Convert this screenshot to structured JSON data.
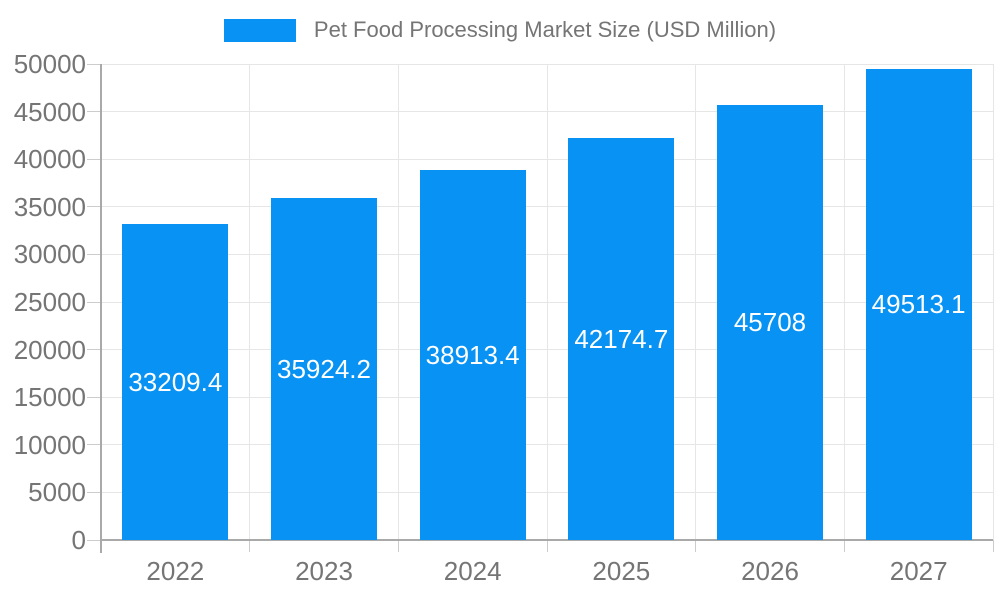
{
  "chart_data": {
    "type": "bar",
    "title": "Pet Food Processing Market Size (USD Million)",
    "categories": [
      "2022",
      "2023",
      "2024",
      "2025",
      "2026",
      "2027"
    ],
    "values": [
      33209.4,
      35924.2,
      38913.4,
      42174.7,
      45708,
      49513.1
    ],
    "bar_labels": [
      "33209.4",
      "35924.2",
      "38913.4",
      "42174.7",
      "45708",
      "49513.1"
    ],
    "series": [
      {
        "name": "Pet Food Processing Market Size (USD Million)",
        "values": [
          33209.4,
          35924.2,
          38913.4,
          42174.7,
          45708,
          49513.1
        ]
      }
    ],
    "xlabel": "",
    "ylabel": "",
    "ylim": [
      0,
      50000
    ],
    "yticks": [
      0,
      5000,
      10000,
      15000,
      20000,
      25000,
      30000,
      35000,
      40000,
      45000,
      50000
    ],
    "ytick_labels": [
      "0",
      "5000",
      "10000",
      "15000",
      "20000",
      "25000",
      "30000",
      "35000",
      "40000",
      "45000",
      "50000"
    ],
    "grid": true,
    "legend": {
      "position": "top",
      "label": "Pet Food Processing Market Size (USD Million)"
    },
    "colors": {
      "bar": "#0892f4",
      "bar_label_text": "#ffffff",
      "axis_text": "#757575",
      "gridline": "#e6e6e6",
      "axis_line": "#a9a9a9",
      "tick": "#cccccc",
      "background": "#ffffff"
    }
  }
}
